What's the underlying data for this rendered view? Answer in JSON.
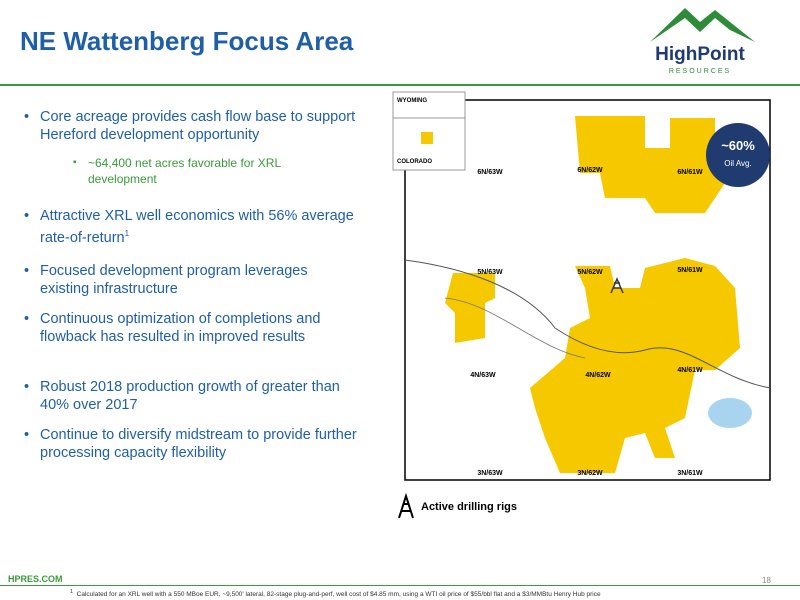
{
  "header": {
    "title": "NE Wattenberg Focus Area",
    "logo_name": "HighPoint",
    "logo_sub": "RESOURCES"
  },
  "bullets": [
    {
      "text": "Core acreage provides cash flow base to support Hereford development opportunity",
      "sub": "~64,400 net acres favorable for XRL development"
    },
    {
      "text": "Attractive XRL well economics with 56% average rate-of-return",
      "footnote_ref": "1"
    },
    {
      "text": "Focused development program leverages existing infrastructure"
    },
    {
      "text": "Continuous optimization of completions and flowback has resulted in improved results"
    },
    {
      "text": "Robust 2018 production growth of greater than 40% over 2017"
    },
    {
      "text": "Continue to diversify midstream to provide further processing capacity flexibility"
    }
  ],
  "map": {
    "inset_top": "WYOMING",
    "inset_bottom": "COLORADO",
    "oil_pct": "~60%",
    "oil_label": "Oil Avg.",
    "townships": [
      "6N/63W",
      "6N/62W",
      "6N/61W",
      "5N/63W",
      "5N/62W",
      "5N/61W",
      "4N/63W",
      "4N/62W",
      "4N/61W",
      "3N/63W",
      "3N/62W",
      "3N/61W"
    ],
    "legend": "Active drilling rigs"
  },
  "footer": {
    "site": "HPRES.COM",
    "page": "18",
    "footnote_mark": "1",
    "footnote": "Calculated for an XRL well with a 550 MBoe EUR, ~9,500' lateral, 82-stage plug-and-perf, well cost of $4.85 mm, using a WTI oil price of $55/bbl flat and a $3/MMBtu Henry Hub price"
  }
}
